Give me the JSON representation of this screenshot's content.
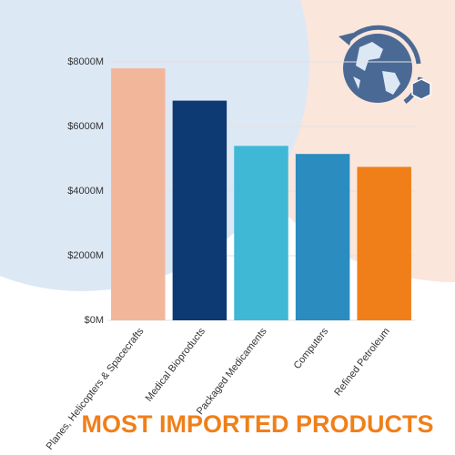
{
  "chart_data": {
    "type": "bar",
    "title": "MOST IMPORTED PRODUCTS",
    "categories": [
      "Planes, Helicopters & Spacecrafts",
      "Medical Bioproducts",
      "Packaged Medicaments",
      "Computers",
      "Refined Petroleum"
    ],
    "values": [
      7800,
      6800,
      5400,
      5150,
      4750
    ],
    "colors": [
      "#f2b79a",
      "#0d3a73",
      "#3fb8d6",
      "#2b8cbf",
      "#f07f1a"
    ],
    "ylim": [
      0,
      8000
    ],
    "yticks": [
      {
        "value": 0,
        "label": "$0M"
      },
      {
        "value": 2000,
        "label": "$2000M"
      },
      {
        "value": 4000,
        "label": "$4000M"
      },
      {
        "value": 6000,
        "label": "$6000M"
      },
      {
        "value": 8000,
        "label": "$8000M"
      }
    ],
    "grid": true
  }
}
